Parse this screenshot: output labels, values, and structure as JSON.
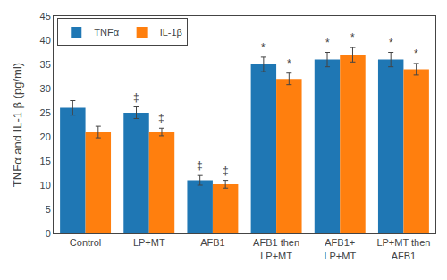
{
  "chart_data": {
    "type": "bar",
    "categories": [
      "Control",
      "LP+MT",
      "AFB1",
      "AFB1 then\nLP+MT",
      "AFB1+\nLP+MT",
      "LP+MT then\nAFB1"
    ],
    "series": [
      {
        "name": "TNFα",
        "values": [
          26.0,
          25.0,
          11.0,
          35.0,
          36.0,
          36.0
        ],
        "errors": [
          1.5,
          1.2,
          1.0,
          1.5,
          1.5,
          1.5
        ],
        "annotations": [
          null,
          "‡",
          "‡",
          "*",
          "*",
          "*"
        ]
      },
      {
        "name": "IL-1β",
        "values": [
          21.0,
          21.0,
          10.2,
          32.0,
          37.0,
          34.0
        ],
        "errors": [
          1.2,
          0.8,
          0.8,
          1.2,
          1.5,
          1.2
        ],
        "annotations": [
          null,
          "‡",
          "‡",
          "*",
          "*",
          "*"
        ]
      }
    ],
    "ylabel": "TNFα and IL-1 β (pg/ml)",
    "ylim": [
      0,
      45
    ],
    "yticks": [
      0,
      5,
      10,
      15,
      20,
      25,
      30,
      35,
      40,
      45
    ],
    "legend": "upper left",
    "grid": false
  }
}
